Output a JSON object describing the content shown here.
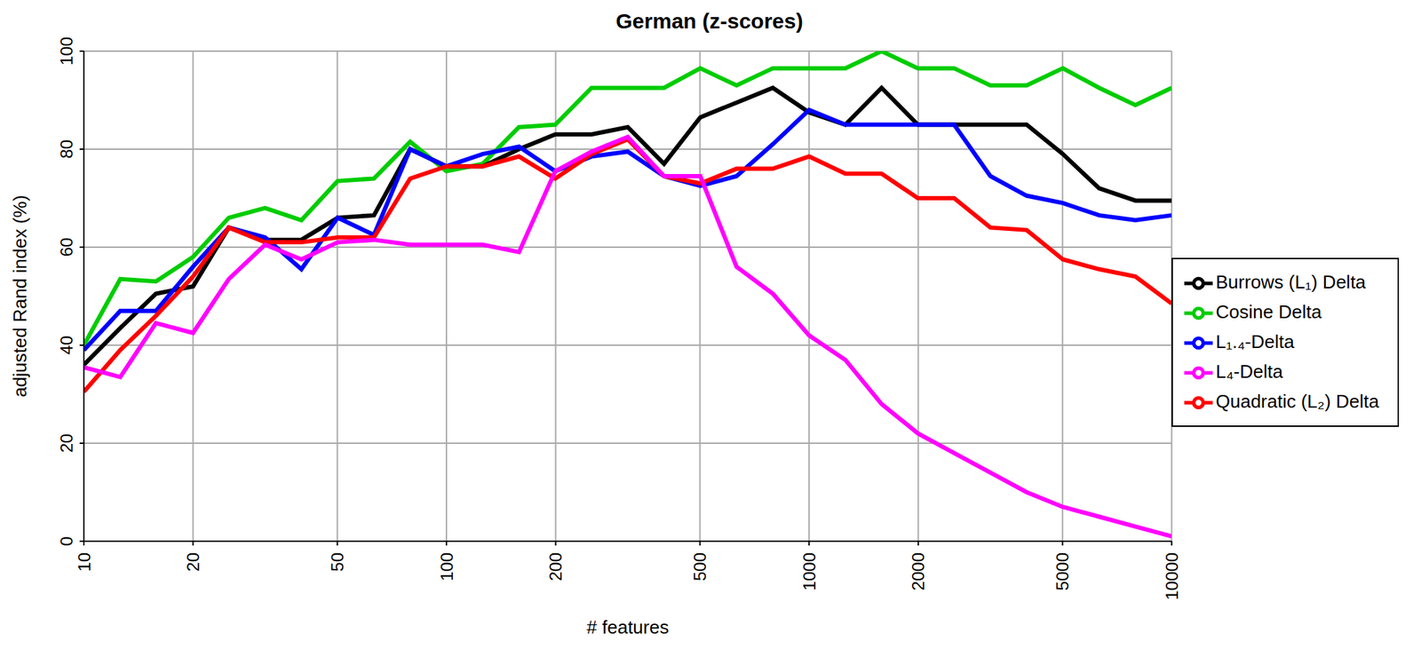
{
  "chart_data": {
    "type": "line",
    "title": "German (z-scores)",
    "x_label": "# features",
    "y_label": "adjusted Rand index (%)",
    "log": "x",
    "grid": true,
    "legend": "right",
    "xlim": [
      10,
      10000
    ],
    "xticks": [
      10,
      20,
      50,
      100,
      200,
      500,
      1000,
      2000,
      5000,
      10000
    ],
    "ylim": [
      0,
      100
    ],
    "yticks": [
      0,
      20,
      40,
      60,
      80,
      100
    ],
    "x": [
      10,
      12.6,
      15.8,
      20,
      25.1,
      31.6,
      39.8,
      50.1,
      63.1,
      79.4,
      100,
      125.9,
      158.5,
      199.5,
      251.2,
      316.2,
      398.1,
      501.2,
      631,
      794.3,
      1000,
      1258.9,
      1584.9,
      1995.3,
      2511.9,
      3162.3,
      3981.1,
      5011.9,
      6309.6,
      7943.3,
      10000
    ],
    "series": [
      {
        "name": "Cosine Delta",
        "color": "#00cc00",
        "values": [
          40,
          53.5,
          53,
          58,
          66,
          68,
          65.5,
          73.5,
          74,
          81.5,
          75.5,
          77,
          84.5,
          85,
          92.5,
          92.5,
          92.5,
          96.5,
          93,
          96.5,
          96.5,
          96.5,
          100,
          96.5,
          96.5,
          93,
          93,
          96.5,
          92.5,
          89,
          92.5
        ]
      },
      {
        "name": "Burrows (L₁) Delta",
        "color": "#000000",
        "values": [
          36,
          43.5,
          50.5,
          52,
          64,
          61.5,
          61.5,
          66,
          66.5,
          80,
          76.5,
          76.5,
          80,
          83,
          83,
          84.5,
          77,
          86.5,
          89.5,
          92.5,
          87.5,
          85,
          92.5,
          85,
          85,
          85,
          85,
          79,
          72,
          69.5,
          69.5
        ]
      },
      {
        "name": "L₁.₄-Delta",
        "color": "#0000ff",
        "values": [
          39,
          47,
          47,
          56,
          64,
          62,
          55.5,
          66,
          62.5,
          80,
          76.5,
          79,
          80.5,
          75.5,
          78.5,
          79.5,
          74.5,
          72.5,
          74.5,
          81,
          88,
          85,
          85,
          85,
          85,
          74.5,
          70.5,
          69,
          66.5,
          65.5,
          66.5
        ]
      },
      {
        "name": "Quadratic (L₂) Delta",
        "color": "#ff0000",
        "values": [
          30.5,
          39,
          46,
          54,
          64,
          61,
          61,
          62,
          62,
          74,
          76.5,
          76.5,
          78.5,
          74,
          79,
          82,
          74.5,
          73,
          76,
          76,
          78.5,
          75,
          75,
          70,
          70,
          64,
          63.5,
          57.5,
          55.5,
          54,
          48.5
        ]
      },
      {
        "name": "L₄-Delta",
        "color": "#ff00ff",
        "values": [
          35.5,
          33.5,
          44.5,
          42.5,
          53.5,
          60.5,
          57.5,
          61,
          61.5,
          60.5,
          60.5,
          60.5,
          59,
          75.5,
          79.5,
          82.5,
          74.5,
          74.5,
          56,
          50.5,
          42,
          37,
          28,
          22,
          18,
          14,
          10,
          7,
          5,
          3,
          1
        ]
      }
    ]
  }
}
